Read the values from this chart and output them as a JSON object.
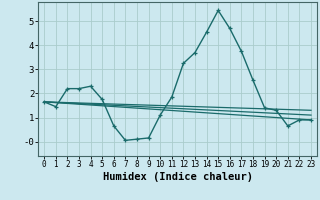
{
  "xlabel": "Humidex (Indice chaleur)",
  "ylabel": "",
  "bg_color": "#cce8ef",
  "line_color": "#1a6b6b",
  "grid_color": "#aacccc",
  "xlim": [
    -0.5,
    23.5
  ],
  "ylim": [
    -0.6,
    5.8
  ],
  "xticks": [
    0,
    1,
    2,
    3,
    4,
    5,
    6,
    7,
    8,
    9,
    10,
    11,
    12,
    13,
    14,
    15,
    16,
    17,
    18,
    19,
    20,
    21,
    22,
    23
  ],
  "yticks": [
    0,
    1,
    2,
    3,
    4,
    5
  ],
  "ytick_labels": [
    "-0",
    "1",
    "2",
    "3",
    "4",
    "5"
  ],
  "series_main": {
    "x": [
      0,
      1,
      2,
      3,
      4,
      5,
      6,
      7,
      8,
      9,
      10,
      11,
      12,
      13,
      14,
      15,
      16,
      17,
      18,
      19,
      20,
      21,
      22,
      23
    ],
    "y": [
      1.65,
      1.45,
      2.2,
      2.2,
      2.3,
      1.75,
      0.65,
      0.05,
      0.1,
      0.15,
      1.1,
      1.85,
      3.25,
      3.7,
      4.55,
      5.45,
      4.7,
      3.75,
      2.55,
      1.4,
      1.3,
      0.65,
      0.9,
      0.9
    ]
  },
  "series_lines": [
    {
      "x": [
        0,
        23
      ],
      "y": [
        1.65,
        0.9
      ]
    },
    {
      "x": [
        0,
        23
      ],
      "y": [
        1.65,
        1.1
      ]
    },
    {
      "x": [
        0,
        23
      ],
      "y": [
        1.65,
        1.3
      ]
    }
  ]
}
